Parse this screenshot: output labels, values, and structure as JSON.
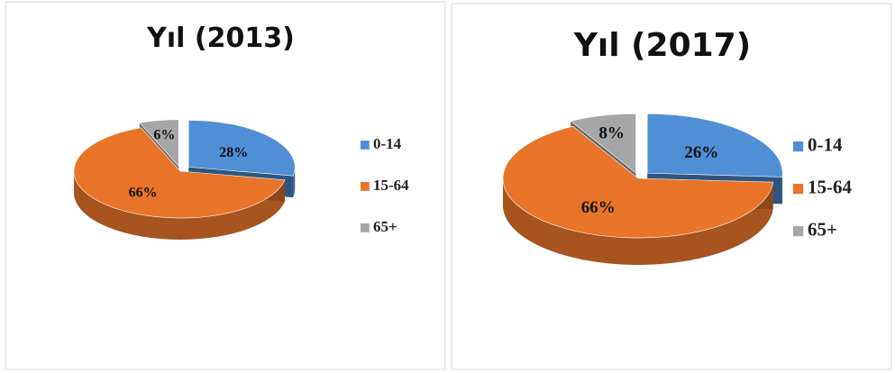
{
  "chart_data": [
    {
      "type": "pie",
      "title": "Yıl (2013)",
      "categories": [
        "0-14",
        "15-64",
        "65+"
      ],
      "values": [
        28,
        66,
        6
      ],
      "value_labels": [
        "28%",
        "66%",
        "6%"
      ],
      "colors": [
        "#4f8fd6",
        "#e8742a",
        "#a6a6a6"
      ],
      "legend": "right"
    },
    {
      "type": "pie",
      "title": "Yıl (2017)",
      "categories": [
        "0-14",
        "15-64",
        "65+"
      ],
      "values": [
        26,
        66,
        8
      ],
      "value_labels": [
        "26%",
        "66%",
        "8%"
      ],
      "colors": [
        "#4f8fd6",
        "#e8742a",
        "#a6a6a6"
      ],
      "legend": "right"
    }
  ]
}
